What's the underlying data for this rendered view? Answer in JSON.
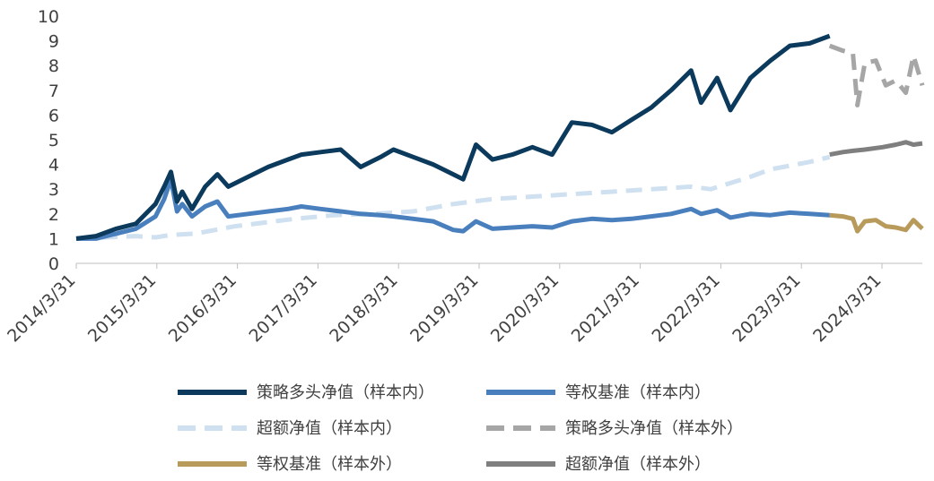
{
  "chart_data": {
    "type": "line",
    "title": "",
    "xlabel": "",
    "ylabel": "",
    "ylim": [
      0,
      10
    ],
    "yticks": [
      0,
      1,
      2,
      3,
      4,
      5,
      6,
      7,
      8,
      9,
      10
    ],
    "xticks": [
      "2014/3/31",
      "2015/3/31",
      "2016/3/31",
      "2017/3/31",
      "2018/3/31",
      "2019/3/31",
      "2020/3/31",
      "2021/3/31",
      "2022/3/31",
      "2023/3/31",
      "2024/3/31"
    ],
    "grid": false,
    "legend_position": "bottom",
    "series": [
      {
        "name": "策略多头净值（样本内）",
        "color": "#0b3a5c",
        "style": "solid",
        "x": [
          "2014-03-31",
          "2014-06-30",
          "2014-09-30",
          "2014-12-31",
          "2015-03-31",
          "2015-05-10",
          "2015-06-10",
          "2015-07-08",
          "2015-08-01",
          "2015-09-15",
          "2015-11-15",
          "2016-01-10",
          "2016-02-29",
          "2016-05-31",
          "2016-08-31",
          "2016-11-30",
          "2017-01-31",
          "2017-04-30",
          "2017-07-31",
          "2017-10-31",
          "2018-01-31",
          "2018-03-31",
          "2018-06-30",
          "2018-09-30",
          "2018-12-31",
          "2019-02-15",
          "2019-04-15",
          "2019-06-30",
          "2019-09-30",
          "2019-12-31",
          "2020-03-31",
          "2020-06-30",
          "2020-09-30",
          "2020-12-31",
          "2021-03-31",
          "2021-06-30",
          "2021-09-30",
          "2021-12-31",
          "2022-02-15",
          "2022-04-30",
          "2022-06-30",
          "2022-09-30",
          "2022-12-31",
          "2023-03-31",
          "2023-06-30",
          "2023-09-30"
        ],
        "y": [
          1.0,
          1.1,
          1.4,
          1.6,
          2.4,
          3.1,
          3.7,
          2.5,
          2.9,
          2.2,
          3.1,
          3.6,
          3.1,
          3.5,
          3.9,
          4.2,
          4.4,
          4.5,
          4.6,
          3.9,
          4.3,
          4.6,
          4.3,
          4.0,
          3.6,
          3.4,
          4.8,
          4.2,
          4.4,
          4.7,
          4.4,
          5.7,
          5.6,
          5.3,
          5.8,
          6.3,
          7.0,
          7.8,
          6.5,
          7.5,
          6.2,
          7.5,
          8.2,
          8.8,
          8.9,
          9.2
        ]
      },
      {
        "name": "等权基准（样本内）",
        "color": "#4a7fbe",
        "style": "solid",
        "x": [
          "2014-03-31",
          "2014-06-30",
          "2014-09-30",
          "2014-12-31",
          "2015-03-31",
          "2015-05-10",
          "2015-06-10",
          "2015-07-08",
          "2015-08-01",
          "2015-09-15",
          "2015-11-15",
          "2016-01-10",
          "2016-02-29",
          "2016-05-31",
          "2016-08-31",
          "2016-11-30",
          "2017-01-31",
          "2017-04-30",
          "2017-07-31",
          "2017-10-31",
          "2018-01-31",
          "2018-03-31",
          "2018-06-30",
          "2018-09-30",
          "2018-12-31",
          "2019-02-15",
          "2019-04-15",
          "2019-06-30",
          "2019-09-30",
          "2019-12-31",
          "2020-03-31",
          "2020-06-30",
          "2020-09-30",
          "2020-12-31",
          "2021-03-31",
          "2021-06-30",
          "2021-09-30",
          "2021-12-31",
          "2022-02-15",
          "2022-04-30",
          "2022-06-30",
          "2022-09-30",
          "2022-12-31",
          "2023-03-31",
          "2023-06-30",
          "2023-09-30"
        ],
        "y": [
          1.0,
          1.0,
          1.2,
          1.4,
          1.9,
          2.6,
          3.4,
          2.1,
          2.4,
          1.9,
          2.3,
          2.5,
          1.9,
          2.0,
          2.1,
          2.2,
          2.3,
          2.2,
          2.1,
          2.0,
          1.95,
          1.9,
          1.8,
          1.7,
          1.35,
          1.3,
          1.7,
          1.4,
          1.45,
          1.5,
          1.45,
          1.7,
          1.8,
          1.75,
          1.8,
          1.9,
          2.0,
          2.2,
          2.0,
          2.15,
          1.85,
          2.0,
          1.95,
          2.05,
          2.0,
          1.95
        ]
      },
      {
        "name": "超额净值（样本内）",
        "color": "#cfe0f0",
        "style": "dashed",
        "x": [
          "2014-03-31",
          "2014-12-31",
          "2015-03-31",
          "2015-06-10",
          "2015-09-30",
          "2016-03-31",
          "2016-12-31",
          "2017-06-30",
          "2017-12-31",
          "2018-06-30",
          "2018-12-31",
          "2019-06-30",
          "2019-12-31",
          "2020-06-30",
          "2020-12-31",
          "2021-06-30",
          "2021-12-31",
          "2022-03-31",
          "2022-09-30",
          "2022-12-31",
          "2023-06-30",
          "2023-09-30"
        ],
        "y": [
          1.0,
          1.1,
          1.05,
          1.15,
          1.2,
          1.5,
          1.8,
          1.95,
          2.0,
          2.1,
          2.4,
          2.6,
          2.7,
          2.8,
          2.9,
          3.0,
          3.1,
          3.0,
          3.5,
          3.8,
          4.1,
          4.3
        ]
      },
      {
        "name": "策略多头净值（样本外）",
        "color": "#a6a6a6",
        "style": "dashed",
        "x": [
          "2023-09-30",
          "2023-11-30",
          "2024-01-15",
          "2024-02-05",
          "2024-03-10",
          "2024-04-30",
          "2024-06-15",
          "2024-07-31",
          "2024-09-15",
          "2024-10-20",
          "2024-11-30"
        ],
        "y": [
          8.8,
          8.6,
          8.5,
          6.4,
          8.1,
          8.2,
          7.2,
          7.4,
          6.9,
          8.4,
          7.2
        ]
      },
      {
        "name": "等权基准（样本外）",
        "color": "#b89a5a",
        "style": "solid",
        "x": [
          "2023-09-30",
          "2023-11-30",
          "2024-01-15",
          "2024-02-05",
          "2024-03-10",
          "2024-04-30",
          "2024-06-15",
          "2024-07-31",
          "2024-09-15",
          "2024-10-20",
          "2024-11-30"
        ],
        "y": [
          1.95,
          1.9,
          1.8,
          1.3,
          1.7,
          1.75,
          1.5,
          1.45,
          1.35,
          1.75,
          1.4
        ]
      },
      {
        "name": "超额净值（样本外）",
        "color": "#7f7f7f",
        "style": "solid",
        "x": [
          "2023-09-30",
          "2023-11-30",
          "2024-01-15",
          "2024-03-10",
          "2024-05-31",
          "2024-07-31",
          "2024-09-15",
          "2024-10-20",
          "2024-11-30"
        ],
        "y": [
          4.4,
          4.5,
          4.55,
          4.6,
          4.7,
          4.8,
          4.9,
          4.8,
          4.85
        ]
      }
    ]
  }
}
